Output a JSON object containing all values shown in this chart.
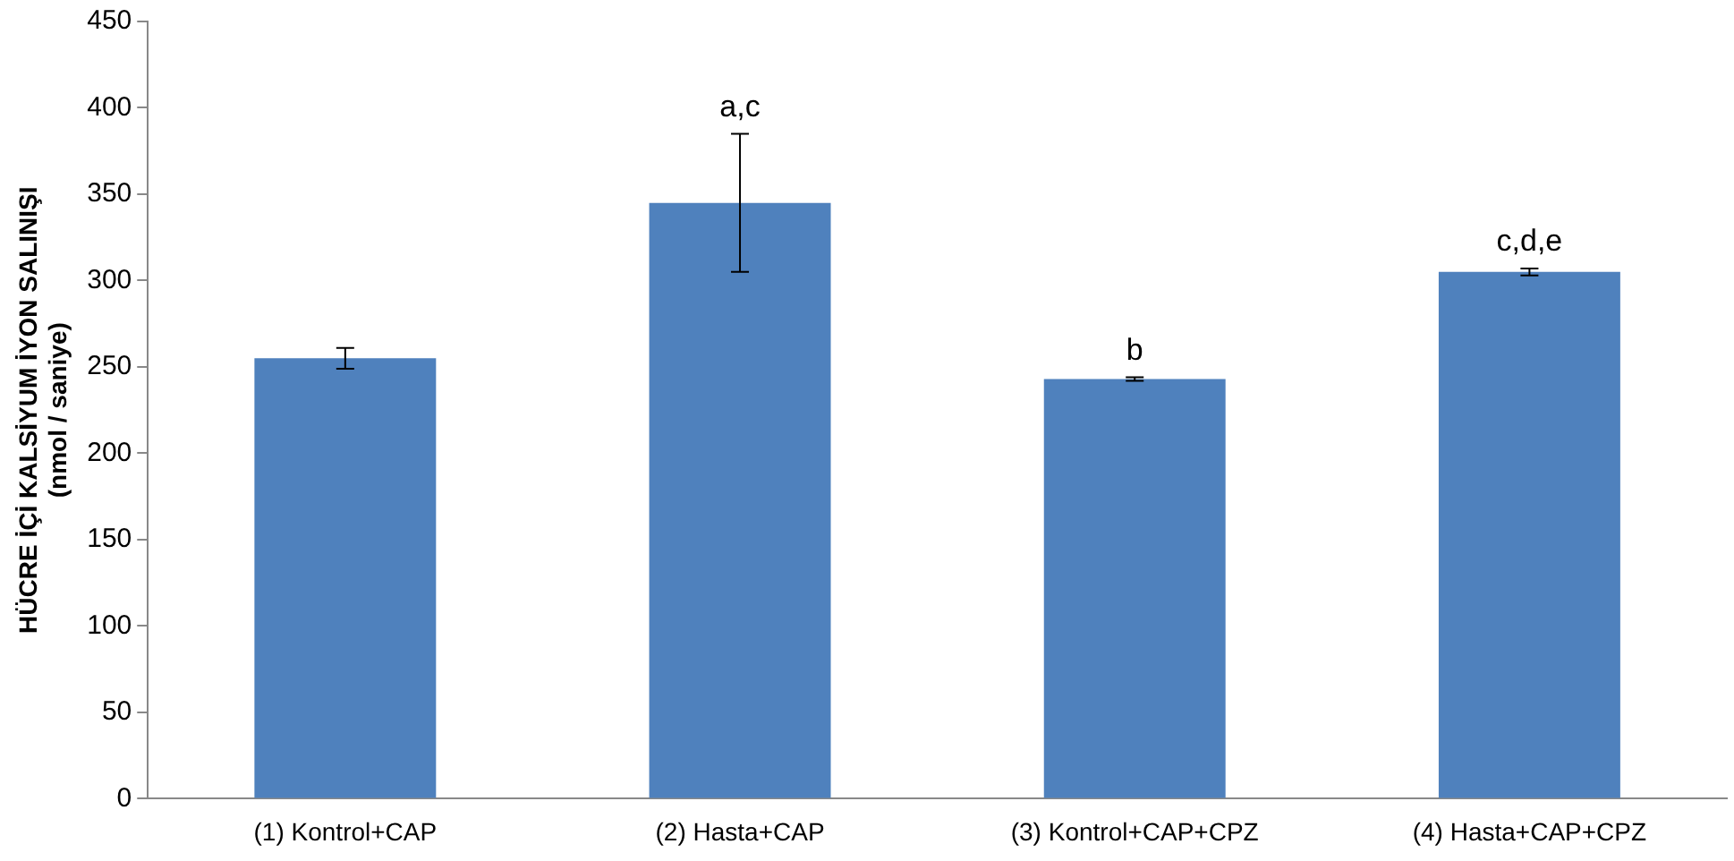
{
  "chart_data": {
    "type": "bar",
    "ylabel": "HÜCRE İÇİ KALSİYUM İYON SALINIŞI\n(nmol / saniye)",
    "categories": [
      "(1) Kontrol+CAP",
      "(2) Hasta+CAP",
      "(3) Kontrol+CAP+CPZ",
      "(4) Hasta+CAP+CPZ"
    ],
    "values": [
      255,
      345,
      243,
      305
    ],
    "errors": [
      6,
      40,
      1,
      2
    ],
    "color": "#4f81bd",
    "ylim": [
      0,
      450
    ],
    "yticks": [
      0,
      50,
      100,
      150,
      200,
      250,
      300,
      350,
      400,
      450
    ],
    "grid": false,
    "legend": false,
    "annotations": [
      {
        "text": "a,c",
        "x": "(2) Hasta+CAP",
        "y": 385
      },
      {
        "text": "b",
        "x": "(3) Kontrol+CAP+CPZ",
        "y": 244
      },
      {
        "text": "c,d,e",
        "x": "(4) Hasta+CAP+CPZ",
        "y": 307
      }
    ]
  }
}
